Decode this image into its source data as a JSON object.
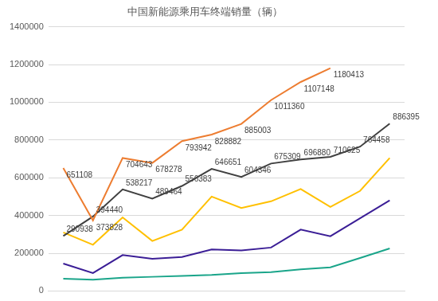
{
  "chart_data": {
    "type": "line",
    "title": "中国新能源乘用车终端销量（辆）",
    "categories": [
      null,
      null,
      null,
      null,
      null,
      null,
      null,
      null,
      null,
      null,
      null,
      null
    ],
    "series": [
      {
        "name": "",
        "color": "#ed7d31",
        "data_labels": true,
        "values": [
          651108,
          373828,
          704643,
          678278,
          793942,
          828882,
          885003,
          1011360,
          1107148,
          1180413,
          null,
          null
        ]
      },
      {
        "name": "",
        "color": "#404040",
        "data_labels": true,
        "values": [
          290938,
          394440,
          538217,
          489464,
          556383,
          646651,
          604346,
          675309,
          696880,
          710625,
          764458,
          886395
        ]
      },
      {
        "name": "",
        "color": "#ffc000",
        "values": [
          310000,
          245000,
          390000,
          265000,
          325000,
          500000,
          440000,
          475000,
          540000,
          445000,
          530000,
          705000
        ]
      },
      {
        "name": "",
        "color": "#3b1e96",
        "values": [
          145000,
          95000,
          190000,
          170000,
          180000,
          220000,
          215000,
          230000,
          325000,
          290000,
          385000,
          480000
        ]
      },
      {
        "name": "",
        "color": "#1aa58a",
        "values": [
          65000,
          60000,
          70000,
          75000,
          80000,
          85000,
          95000,
          100000,
          115000,
          125000,
          175000,
          225000
        ]
      }
    ],
    "ylim": [
      0,
      1400000
    ],
    "yticks": [
      0,
      200000,
      400000,
      600000,
      800000,
      1000000,
      1200000,
      1400000
    ],
    "grid": true,
    "tick_labels": "y",
    "marker": "none",
    "line_style": "solid"
  }
}
